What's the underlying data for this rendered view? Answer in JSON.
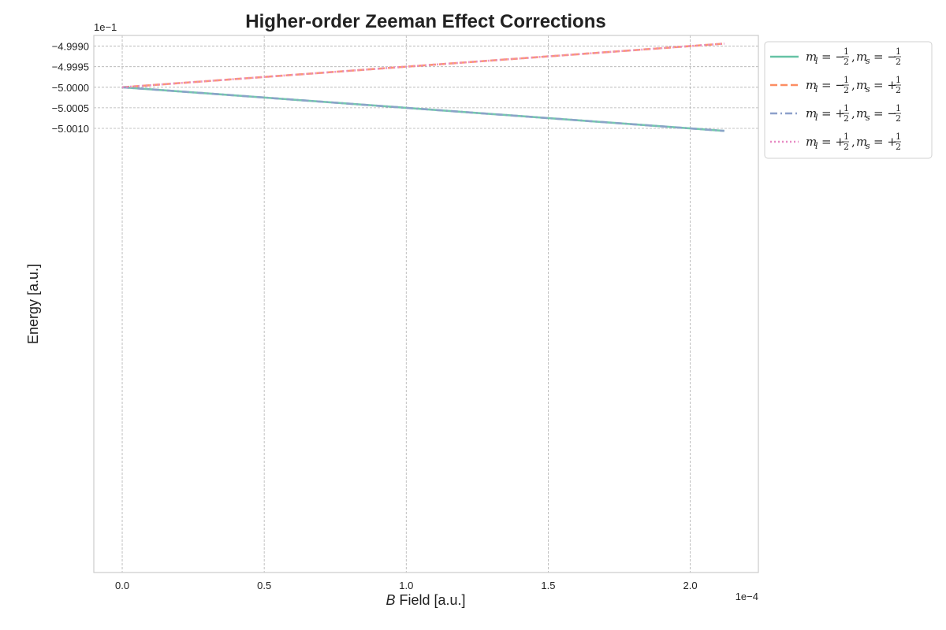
{
  "chart_data": {
    "type": "line",
    "title": "Higher-order Zeeman Effect Corrections",
    "xlabel": "B Field [a.u.]",
    "xlabel_var": "B",
    "xlabel_rest": " Field [a.u.]",
    "ylabel": "Energy [a.u.]",
    "x_offset_text": "1e−4",
    "y_offset_text": "1e−1",
    "xlim": [
      -0.1,
      2.24
    ],
    "ylim": [
      -5.0118,
      -4.99874
    ],
    "x_ticks": [
      {
        "value": 0.0,
        "label": "0.0"
      },
      {
        "value": 0.5,
        "label": "0.5"
      },
      {
        "value": 1.0,
        "label": "1.0"
      },
      {
        "value": 1.5,
        "label": "1.5"
      },
      {
        "value": 2.0,
        "label": "2.0"
      }
    ],
    "y_ticks": [
      {
        "value": -4.999,
        "label": "−4.9990"
      },
      {
        "value": -4.9995,
        "label": "−4.9995"
      },
      {
        "value": -5.0,
        "label": "−5.0000"
      },
      {
        "value": -5.0005,
        "label": "−5.0005"
      },
      {
        "value": -5.001,
        "label": "−5.0010"
      }
    ],
    "grid": true,
    "legend_position": "outside-top-right",
    "series": [
      {
        "name": "m_l = −1/2, m_s = −1/2",
        "ml_sign": "−",
        "ms_sign": "−",
        "color": "#66c2a5",
        "style": "solid",
        "x": [
          0.0,
          2.12
        ],
        "y": [
          -5.0,
          -5.00106
        ]
      },
      {
        "name": "m_l = −1/2, m_s = +1/2",
        "ml_sign": "−",
        "ms_sign": "+",
        "color": "#fc8d62",
        "style": "dashed",
        "x": [
          0.0,
          2.12
        ],
        "y": [
          -5.0,
          -4.99894
        ]
      },
      {
        "name": "m_l = +1/2, m_s = −1/2",
        "ml_sign": "+",
        "ms_sign": "−",
        "color": "#8da0cb",
        "style": "dashdot",
        "x": [
          0.0,
          2.12
        ],
        "y": [
          -5.0,
          -5.00106
        ]
      },
      {
        "name": "m_l = +1/2, m_s = +1/2",
        "ml_sign": "+",
        "ms_sign": "+",
        "color": "#e78ac3",
        "style": "dotted",
        "x": [
          0.0,
          2.12
        ],
        "y": [
          -5.0,
          -4.99894
        ]
      }
    ]
  }
}
